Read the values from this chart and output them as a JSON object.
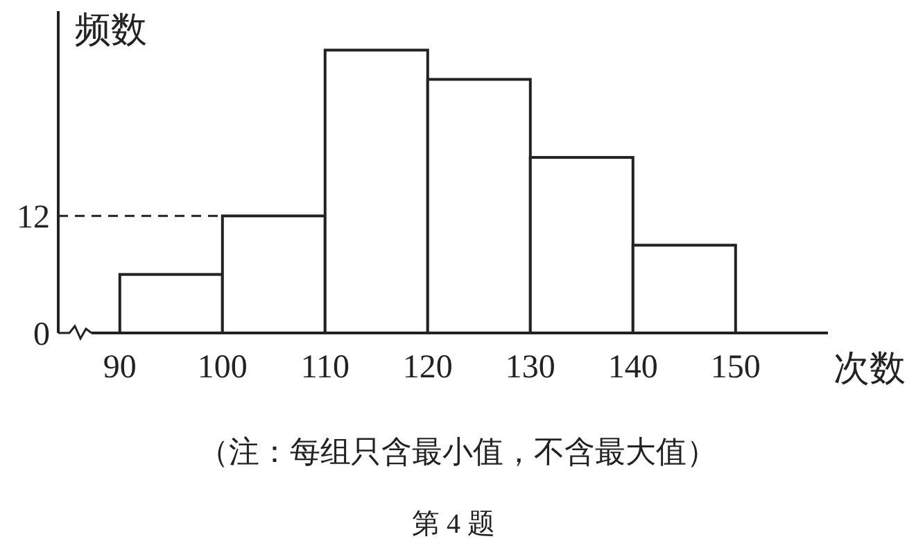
{
  "chart_data": {
    "type": "histogram",
    "ylabel": "频数",
    "xlabel": "次数",
    "bins": [
      90,
      100,
      110,
      120,
      130,
      140,
      150
    ],
    "values": [
      6,
      12,
      29,
      26,
      18,
      9
    ],
    "color": "#ffffff",
    "xlim": [
      84,
      159
    ],
    "ylim": [
      0,
      33
    ],
    "xticks": [
      90,
      100,
      110,
      120,
      130,
      140,
      150
    ],
    "yticks": [
      0,
      12
    ],
    "grid": false,
    "ref_lines": [
      {
        "axis": "y",
        "value": 12,
        "line_style": "dashed",
        "color": "#222222"
      }
    ],
    "annotations": [
      "（注：每组只含最小值，不含最大值）",
      "第 4 题"
    ]
  }
}
